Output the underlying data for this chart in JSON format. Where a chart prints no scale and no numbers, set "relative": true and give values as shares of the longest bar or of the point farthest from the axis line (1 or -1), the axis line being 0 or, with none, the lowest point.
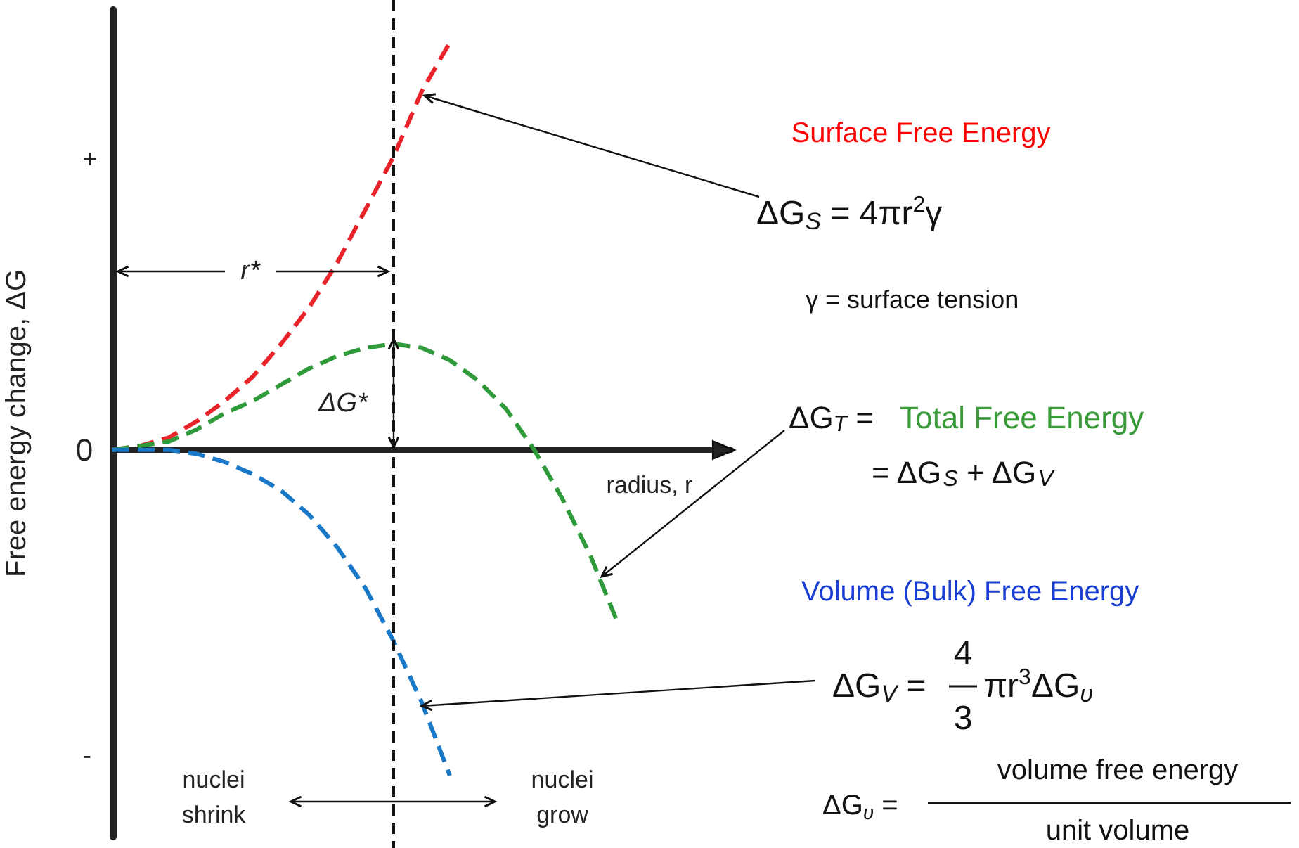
{
  "chart_data": {
    "type": "line",
    "ylabel": "Free energy change, ΔG",
    "relative": true,
    "grid": false,
    "marker": "none",
    "line_style": "dashed",
    "categories": [
      null,
      null,
      null,
      null,
      null,
      null,
      null,
      null,
      null,
      null,
      null,
      null,
      null,
      null,
      null,
      null,
      null,
      null,
      null,
      null,
      null,
      null,
      null
    ],
    "series": [
      {
        "color": "#e8242a",
        "values": [
          0,
          0.01,
          0.03,
          0.07,
          0.12,
          0.18,
          0.26,
          0.35,
          0.46,
          0.59,
          0.72,
          0.88,
          1,
          null,
          null,
          null,
          null,
          null,
          null,
          null,
          null,
          null,
          null
        ]
      },
      {
        "color": "#2e9a3a",
        "values": [
          0,
          0.01,
          0.02,
          0.05,
          0.09,
          0.12,
          0.16,
          0.2,
          0.23,
          0.25,
          0.26,
          0.25,
          0.22,
          0.17,
          0.1,
          0,
          -0.12,
          -0.26,
          -0.43,
          null,
          null,
          null,
          null
        ]
      },
      {
        "color": "#1a78c8",
        "values": [
          0,
          0,
          0,
          -0.01,
          -0.03,
          -0.06,
          -0.1,
          -0.16,
          -0.24,
          -0.34,
          -0.47,
          -0.62,
          -0.8,
          null,
          null,
          null,
          null,
          null,
          null,
          null,
          null,
          null,
          null
        ]
      }
    ],
    "annotations": [
      "+",
      "0",
      "-",
      "r*",
      "ΔG*",
      "radius, r",
      "nuclei\nshrink",
      "nuclei\ngrow",
      "Surface Free Energy",
      "ΔG$_{S}$ = 4πr$^{2}$γ",
      "γ = surface tension",
      "ΔG$_{T}$ =",
      "Total Free Energy",
      "= ΔG$_{S}$ + ΔG$_{V}$",
      "Volume (Bulk) Free Energy",
      "ΔG$_{V}$ =",
      "4",
      "3",
      "πr$^{3}$ΔG$_{υ}$",
      "ΔG$_{υ}$ =",
      "volume free energy",
      "unit volume"
    ]
  }
}
